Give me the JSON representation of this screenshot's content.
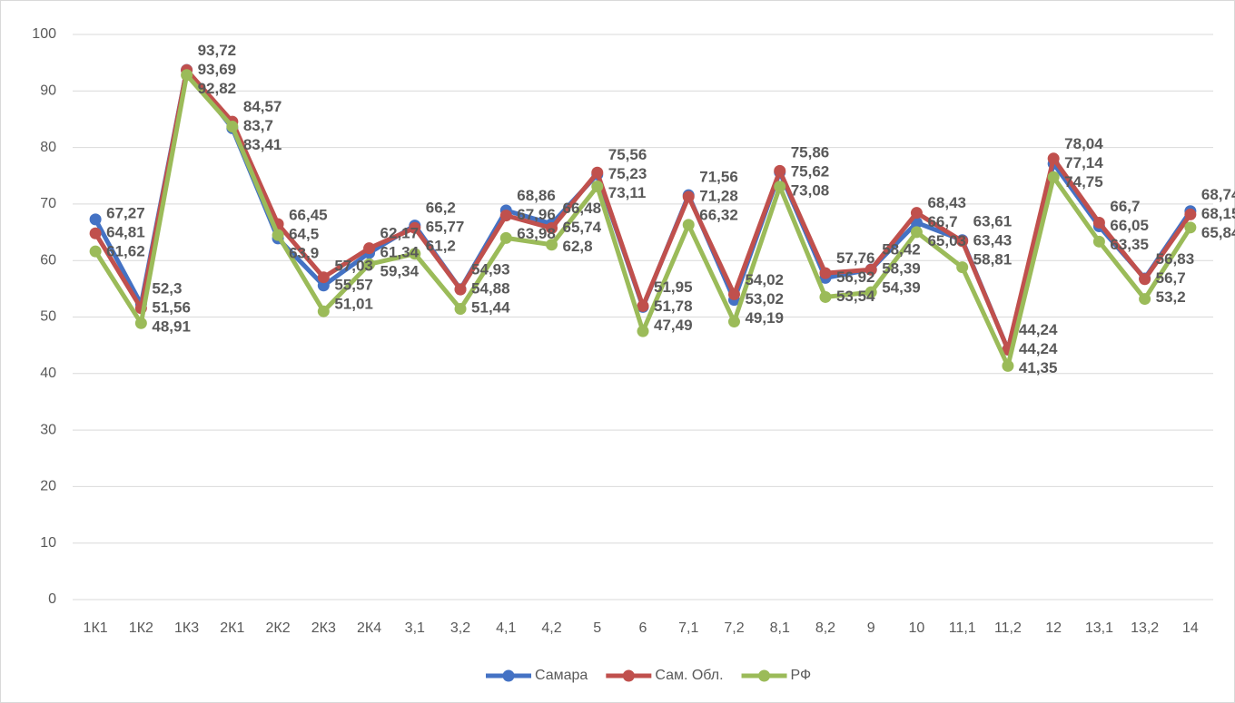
{
  "chart_data": {
    "type": "line",
    "categories": [
      "1К1",
      "1К2",
      "1К3",
      "2К1",
      "2К2",
      "2К3",
      "2К4",
      "3,1",
      "3,2",
      "4,1",
      "4,2",
      "5",
      "6",
      "7,1",
      "7,2",
      "8,1",
      "8,2",
      "9",
      "10",
      "11,1",
      "11,2",
      "12",
      "13,1",
      "13,2",
      "14"
    ],
    "series": [
      {
        "name": "Самара",
        "color": "#4472c4",
        "label_color": "#0070c0",
        "values": [
          67.27,
          52.3,
          93.72,
          83.41,
          63.9,
          55.57,
          61.34,
          66.2,
          54.93,
          68.86,
          66.48,
          75.23,
          51.78,
          71.56,
          53.02,
          75.62,
          56.92,
          58.42,
          66.7,
          63.61,
          44.24,
          77.14,
          66.05,
          56.83,
          68.74
        ],
        "value_labels": [
          "67,27",
          "52,3",
          "93,72",
          "83,41",
          "63,9",
          "55,57",
          "61,34",
          "66,2",
          "54,93",
          "68,86",
          "66,48",
          "75,23",
          "51,78",
          "71,56",
          "53,02",
          "75,62",
          "56,92",
          "58,42",
          "66,7",
          "63,61",
          "44,24",
          "77,14",
          "66,05",
          "56,83",
          "68,74"
        ]
      },
      {
        "name": "Сам. Обл.",
        "color": "#c0504d",
        "label_color": "#c00000",
        "values": [
          64.81,
          51.56,
          93.69,
          84.57,
          66.45,
          57.03,
          62.17,
          65.77,
          54.88,
          67.96,
          65.74,
          75.56,
          51.95,
          71.28,
          54.02,
          75.86,
          57.76,
          58.39,
          68.43,
          63.43,
          44.24,
          78.04,
          66.7,
          56.7,
          68.15
        ],
        "value_labels": [
          "64,81",
          "51,56",
          "93,69",
          "84,57",
          "66,45",
          "57,03",
          "62,17",
          "65,77",
          "54,88",
          "67,96",
          "65,74",
          "75,56",
          "51,95",
          "71,28",
          "54,02",
          "75,86",
          "57,76",
          "58,39",
          "68,43",
          "63,43",
          "44,24",
          "78,04",
          "66,7",
          "56,7",
          "68,15"
        ]
      },
      {
        "name": "РФ",
        "color": "#9bbb59",
        "label_color": "#339933",
        "values": [
          61.62,
          48.91,
          92.82,
          83.7,
          64.5,
          51.01,
          59.34,
          61.2,
          51.44,
          63.98,
          62.8,
          73.11,
          47.49,
          66.32,
          49.19,
          73.08,
          53.54,
          54.39,
          65.03,
          58.81,
          41.35,
          74.75,
          63.35,
          53.2,
          65.84
        ],
        "value_labels": [
          "61,62",
          "48,91",
          "92,82",
          "83,7",
          "64,5",
          "51,01",
          "59,34",
          "61,2",
          "51,44",
          "63,98",
          "62,8",
          "73,11",
          "47,49",
          "66,32",
          "49,19",
          "73,08",
          "53,54",
          "54,39",
          "65,03",
          "58,81",
          "41,35",
          "74,75",
          "63,35",
          "53,2",
          "65,84"
        ]
      }
    ],
    "ylim": [
      0,
      100
    ],
    "yticks": [
      0,
      10,
      20,
      30,
      40,
      50,
      60,
      70,
      80,
      90,
      100
    ],
    "grid": true,
    "legend": "bottom"
  }
}
